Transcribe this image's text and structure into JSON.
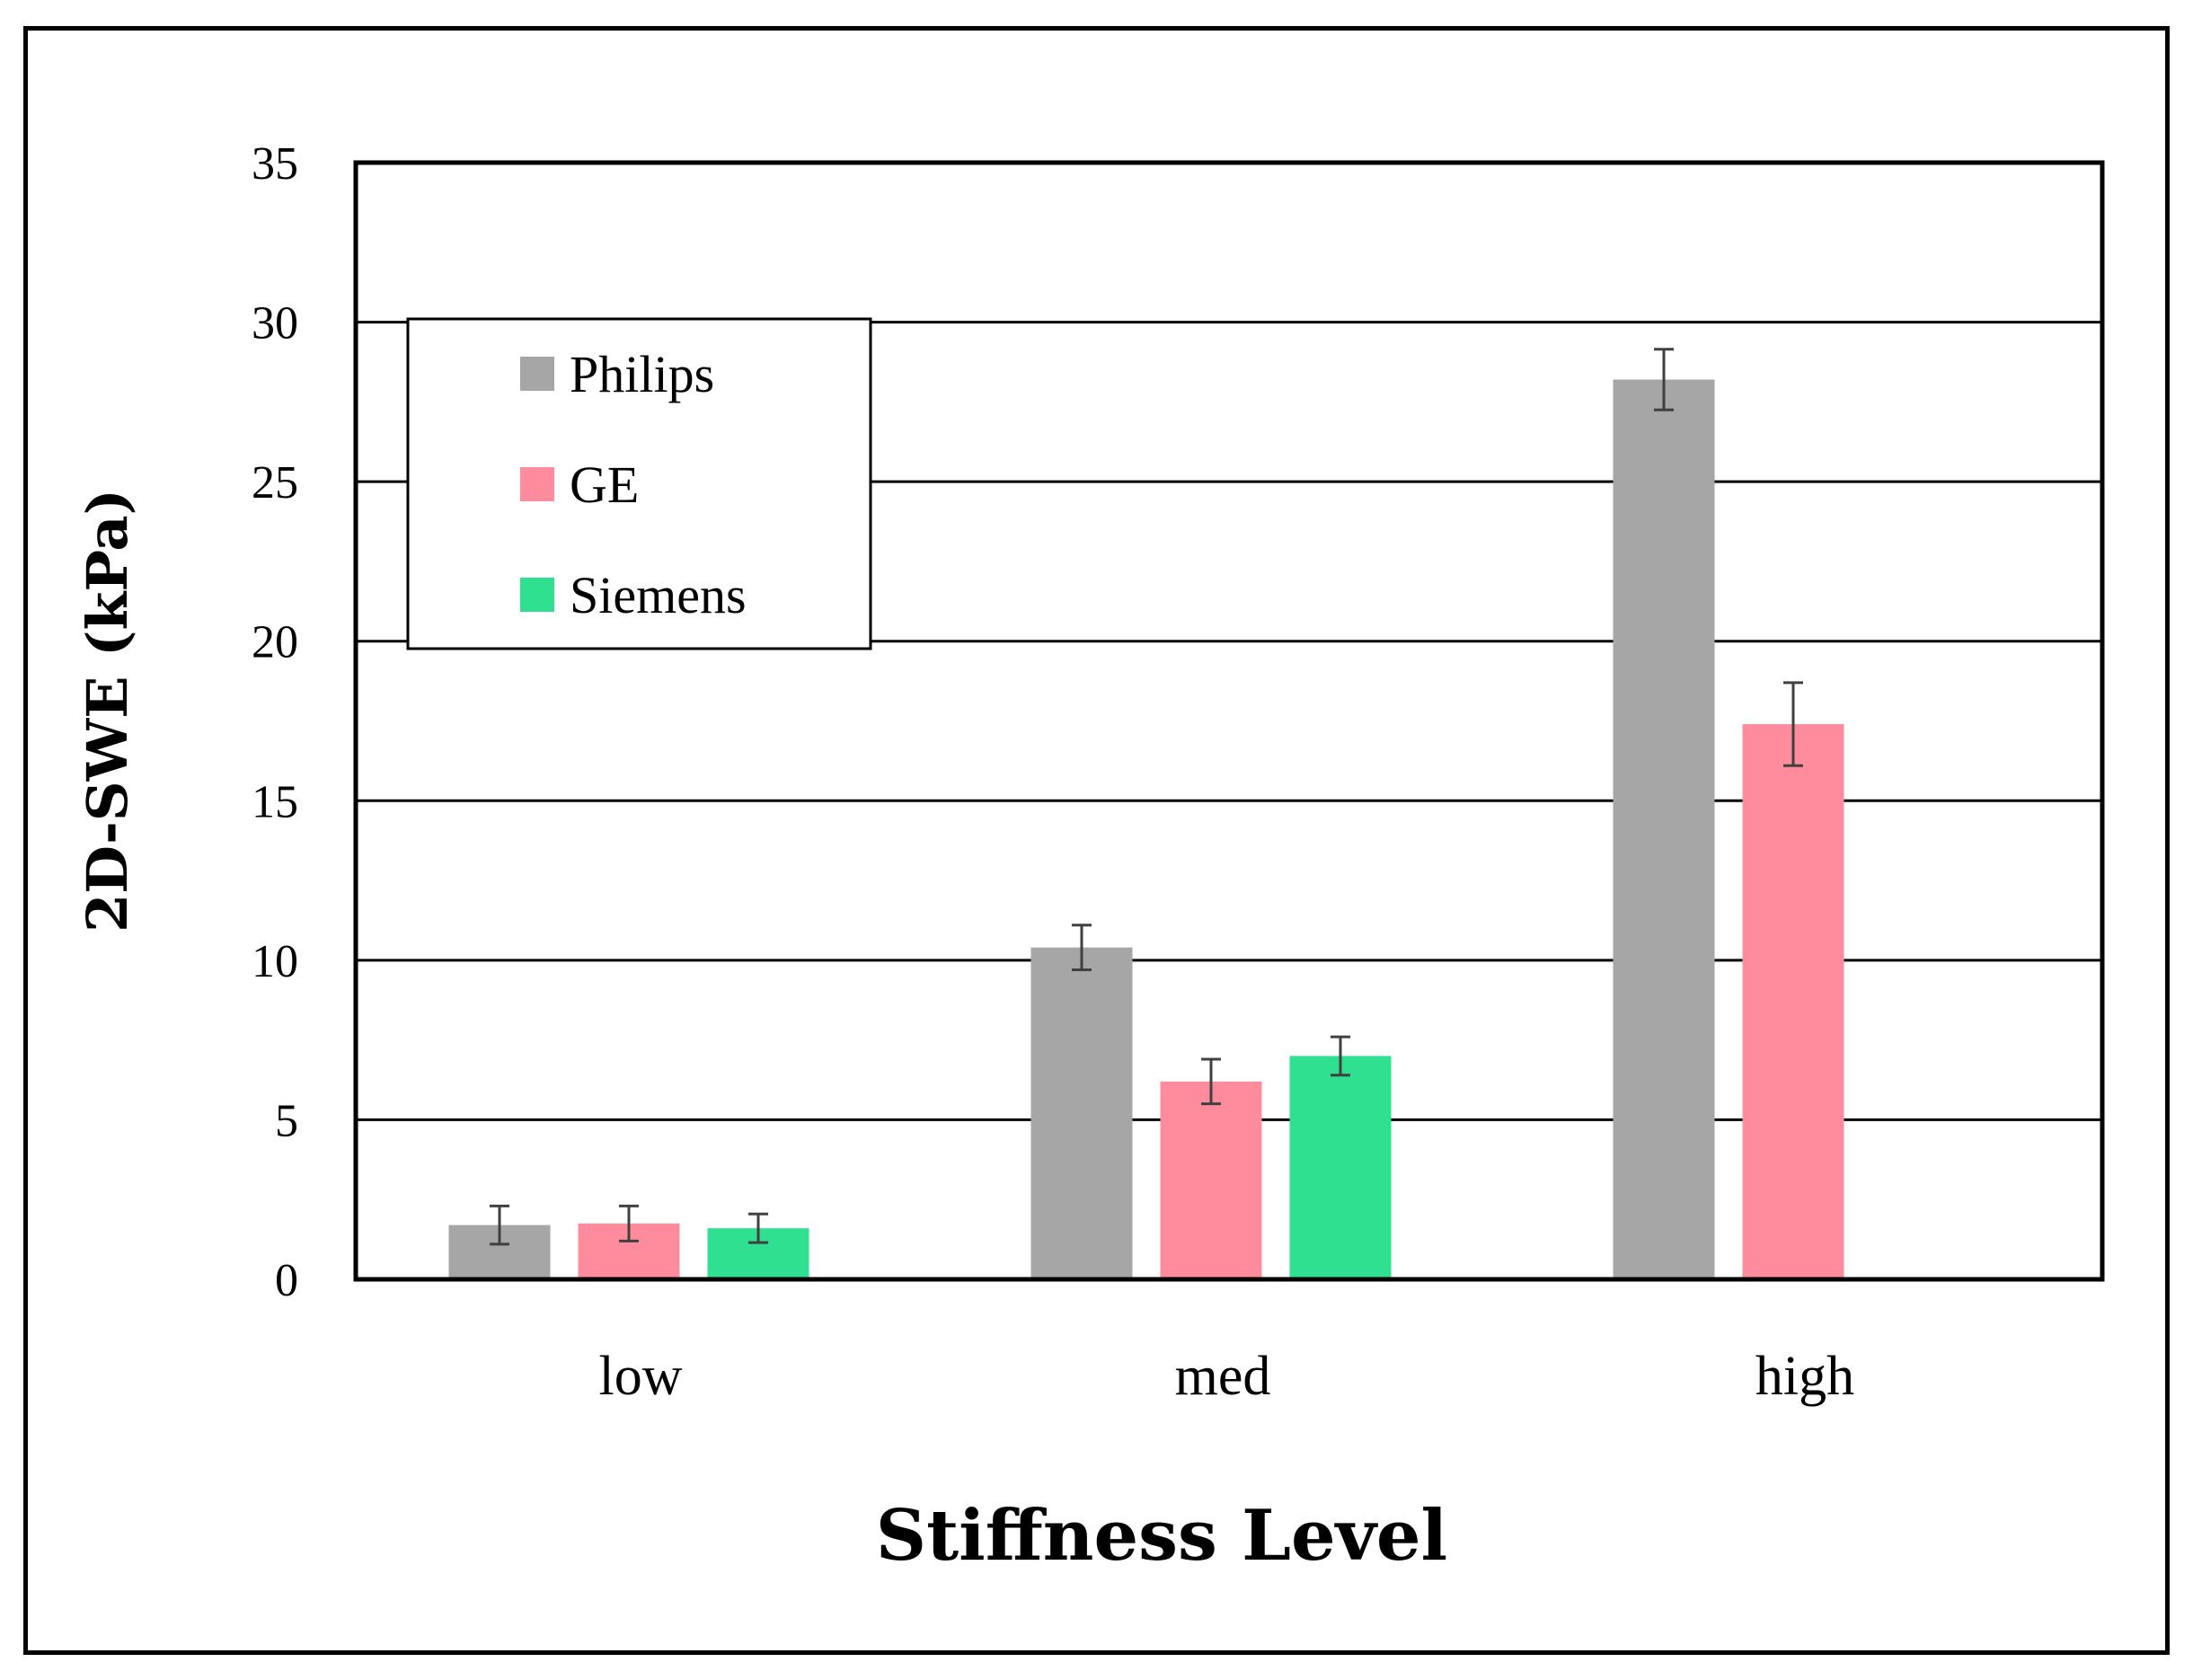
{
  "chart_data": {
    "type": "bar",
    "title": "",
    "xlabel": "Stiffness Level",
    "ylabel": "2D-SWE (kPa)",
    "ylim": [
      0,
      35
    ],
    "yticks": [
      0,
      5,
      10,
      15,
      20,
      25,
      30,
      35
    ],
    "grid": true,
    "legend_position": "top-left",
    "categories": [
      "low",
      "med",
      "high"
    ],
    "series": [
      {
        "name": "Philips",
        "color": "#a6a6a6",
        "values": [
          1.7,
          10.4,
          28.2
        ],
        "errors": [
          0.6,
          0.7,
          0.95
        ]
      },
      {
        "name": "GE",
        "color": "#ff8c9c",
        "values": [
          1.75,
          6.2,
          17.4
        ],
        "errors": [
          0.55,
          0.7,
          1.3
        ]
      },
      {
        "name": "Siemens",
        "color": "#2ee08f",
        "values": [
          1.6,
          7.0,
          null
        ],
        "errors": [
          0.45,
          0.6,
          null
        ]
      }
    ]
  }
}
